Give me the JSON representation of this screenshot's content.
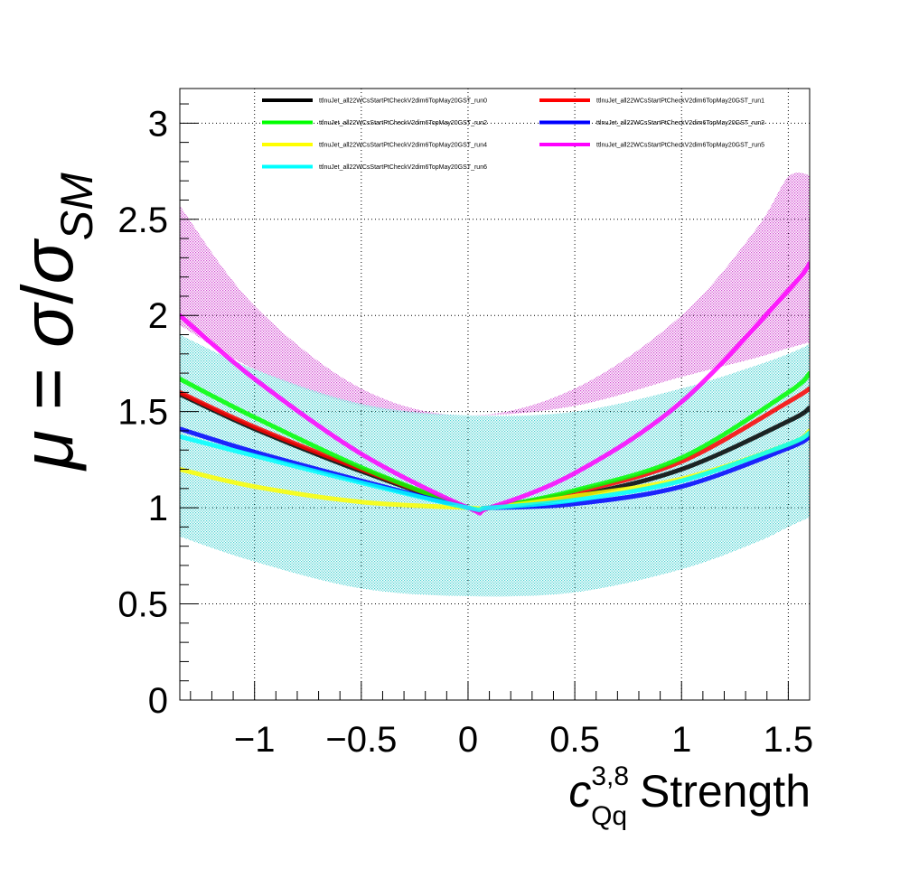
{
  "chart_data": {
    "type": "line",
    "title": "",
    "xlabel": {
      "main": "c",
      "superscript": "3,8",
      "subscript": "Qq",
      "suffix": " Strength"
    },
    "ylabel": {
      "mu": "μ",
      "equals": " = ",
      "sigma1": "σ",
      "slash": "/",
      "sigma2": "σ",
      "subscript": "SM"
    },
    "xlim": [
      -1.35,
      1.6
    ],
    "ylim": [
      0,
      3.18
    ],
    "xticks": [
      {
        "value": -1,
        "label": "−1"
      },
      {
        "value": -0.5,
        "label": "−0.5"
      },
      {
        "value": 0,
        "label": "0"
      },
      {
        "value": 0.5,
        "label": "0.5"
      },
      {
        "value": 1,
        "label": "1"
      },
      {
        "value": 1.5,
        "label": "1.5"
      }
    ],
    "yticks": [
      {
        "value": 0,
        "label": "0"
      },
      {
        "value": 0.5,
        "label": "0.5"
      },
      {
        "value": 1,
        "label": "1"
      },
      {
        "value": 1.5,
        "label": "1.5"
      },
      {
        "value": 2,
        "label": "2"
      },
      {
        "value": 2.5,
        "label": "2.5"
      },
      {
        "value": 3,
        "label": "3"
      }
    ],
    "grid": true,
    "legend_position": "top",
    "bands": [
      {
        "name": "ttlnuJet_all22WCsStartPtCheckV2dim6TopMay20GST_run5",
        "color": "#cc33cc",
        "x": [
          -1.35,
          -1.0,
          -0.5,
          0.0,
          0.5,
          1.0,
          1.35,
          1.5,
          1.6
        ],
        "lower": [
          1.95,
          1.72,
          1.53,
          1.48,
          1.53,
          1.68,
          1.78,
          1.83,
          1.86
        ],
        "upper": [
          2.57,
          2.05,
          1.62,
          1.48,
          1.62,
          2.0,
          2.45,
          2.72,
          2.73
        ]
      },
      {
        "name": "ttlnuJet_all22WCsStartPtCheckV2dim6TopMay20GST_run6",
        "color": "#44cccc",
        "x": [
          -1.35,
          -1.0,
          -0.5,
          0.0,
          0.5,
          1.0,
          1.35,
          1.5,
          1.6
        ],
        "lower": [
          0.85,
          0.72,
          0.58,
          0.54,
          0.56,
          0.68,
          0.82,
          0.9,
          0.95
        ],
        "upper": [
          1.9,
          1.72,
          1.54,
          1.48,
          1.5,
          1.62,
          1.74,
          1.8,
          1.85
        ]
      }
    ],
    "series": [
      {
        "name": "ttlnuJet_all22WCsStartPtCheckV2dim6TopMay20GST_run0",
        "color": "#000000",
        "x": [
          -1.35,
          -1.0,
          -0.5,
          0.0,
          0.1,
          0.5,
          1.0,
          1.5,
          1.6
        ],
        "y": [
          1.59,
          1.41,
          1.19,
          1.0,
          1.0,
          1.06,
          1.2,
          1.45,
          1.52
        ]
      },
      {
        "name": "ttlnuJet_all22WCsStartPtCheckV2dim6TopMay20GST_run1",
        "color": "#ff0000",
        "x": [
          -1.35,
          -1.0,
          -0.5,
          0.0,
          0.1,
          0.5,
          1.0,
          1.5,
          1.6
        ],
        "y": [
          1.6,
          1.42,
          1.2,
          1.0,
          1.0,
          1.08,
          1.24,
          1.55,
          1.62
        ]
      },
      {
        "name": "ttlnuJet_all22WCsStartPtCheckV2dim6TopMay20GST_run2",
        "color": "#00ff00",
        "x": [
          -1.35,
          -1.0,
          -0.5,
          0.0,
          0.1,
          0.5,
          1.0,
          1.5,
          1.6
        ],
        "y": [
          1.67,
          1.47,
          1.21,
          1.0,
          1.0,
          1.09,
          1.26,
          1.6,
          1.7
        ]
      },
      {
        "name": "ttlnuJet_all22WCsStartPtCheckV2dim6TopMay20GST_run3",
        "color": "#0000ff",
        "x": [
          -1.35,
          -1.0,
          -0.5,
          0.0,
          0.1,
          0.5,
          1.0,
          1.5,
          1.6
        ],
        "y": [
          1.41,
          1.29,
          1.14,
          1.0,
          1.0,
          1.02,
          1.11,
          1.31,
          1.37
        ]
      },
      {
        "name": "ttlnuJet_all22WCsStartPtCheckV2dim6TopMay20GST_run4",
        "color": "#ffff00",
        "x": [
          -1.35,
          -1.0,
          -0.5,
          0.0,
          0.1,
          0.5,
          1.0,
          1.5,
          1.6
        ],
        "y": [
          1.2,
          1.11,
          1.03,
          1.0,
          1.0,
          1.06,
          1.15,
          1.33,
          1.4
        ]
      },
      {
        "name": "ttlnuJet_all22WCsStartPtCheckV2dim6TopMay20GST_run5",
        "color": "#ff00ff",
        "x": [
          -1.35,
          -1.0,
          -0.5,
          0.0,
          0.1,
          0.5,
          1.0,
          1.5,
          1.6
        ],
        "y": [
          2.0,
          1.67,
          1.28,
          1.0,
          1.0,
          1.18,
          1.55,
          2.13,
          2.27
        ]
      },
      {
        "name": "ttlnuJet_all22WCsStartPtCheckV2dim6TopMay20GST_run6",
        "color": "#00ffff",
        "x": [
          -1.35,
          -1.0,
          -0.5,
          0.0,
          0.1,
          0.5,
          1.0,
          1.5,
          1.6
        ],
        "y": [
          1.37,
          1.27,
          1.13,
          1.0,
          1.0,
          1.04,
          1.14,
          1.33,
          1.39
        ]
      }
    ],
    "legend": [
      "ttlnuJet_all22WCsStartPtCheckV2dim6TopMay20GST_run0",
      "ttlnuJet_all22WCsStartPtCheckV2dim6TopMay20GST_run1",
      "ttlnuJet_all22WCsStartPtCheckV2dim6TopMay20GST_run2",
      "ttlnuJet_all22WCsStartPtCheckV2dim6TopMay20GST_run3",
      "ttlnuJet_all22WCsStartPtCheckV2dim6TopMay20GST_run4",
      "ttlnuJet_all22WCsStartPtCheckV2dim6TopMay20GST_run5",
      "ttlnuJet_all22WCsStartPtCheckV2dim6TopMay20GST_run6"
    ]
  }
}
